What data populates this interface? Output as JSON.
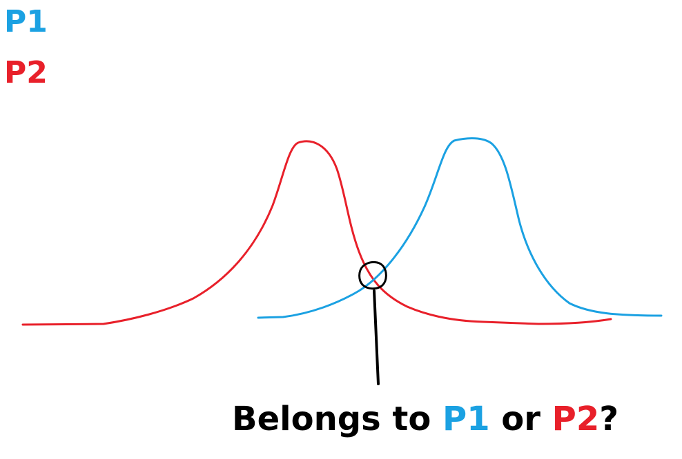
{
  "legend": {
    "items": [
      {
        "label": "P1",
        "color": "#1ba1e2"
      },
      {
        "label": "P2",
        "color": "#e8202a"
      }
    ]
  },
  "curves": {
    "p1": {
      "color": "#1ba1e2"
    },
    "p2": {
      "color": "#e8202a"
    }
  },
  "question": {
    "prefix": "Belongs to ",
    "option1": "P1",
    "middle": " or ",
    "option2": "P2",
    "suffix": "?",
    "text_color": "#000000"
  },
  "marker": {
    "shape": "circle",
    "color": "#000000"
  }
}
